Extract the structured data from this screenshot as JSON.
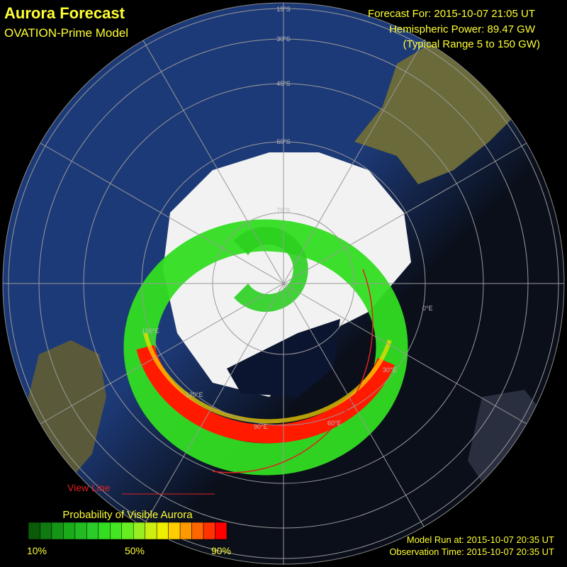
{
  "header": {
    "title": "Aurora Forecast",
    "subtitle": "OVATION-Prime Model"
  },
  "info": {
    "forecast": "Forecast For: 2015-10-07 21:05 UT",
    "power": "Hemispheric Power: 89.47 GW",
    "range": "(Typical Range 5 to 150 GW)"
  },
  "map": {
    "view_line": "View Line",
    "lat_labels": [
      "15°S",
      "30°S",
      "45°S",
      "60°S",
      "75°S"
    ],
    "lon_labels": [
      "0°E",
      "30°E",
      "60°E",
      "90°E",
      "120°E",
      "150°E"
    ]
  },
  "legend": {
    "title": "Probability of Visible Aurora",
    "ticks": [
      "10%",
      "50%",
      "90%"
    ]
  },
  "footer": {
    "model_run": "Model Run at: 2015-10-07 20:35 UT",
    "observation": "Observation Time: 2015-10-07 20:35 UT"
  }
}
